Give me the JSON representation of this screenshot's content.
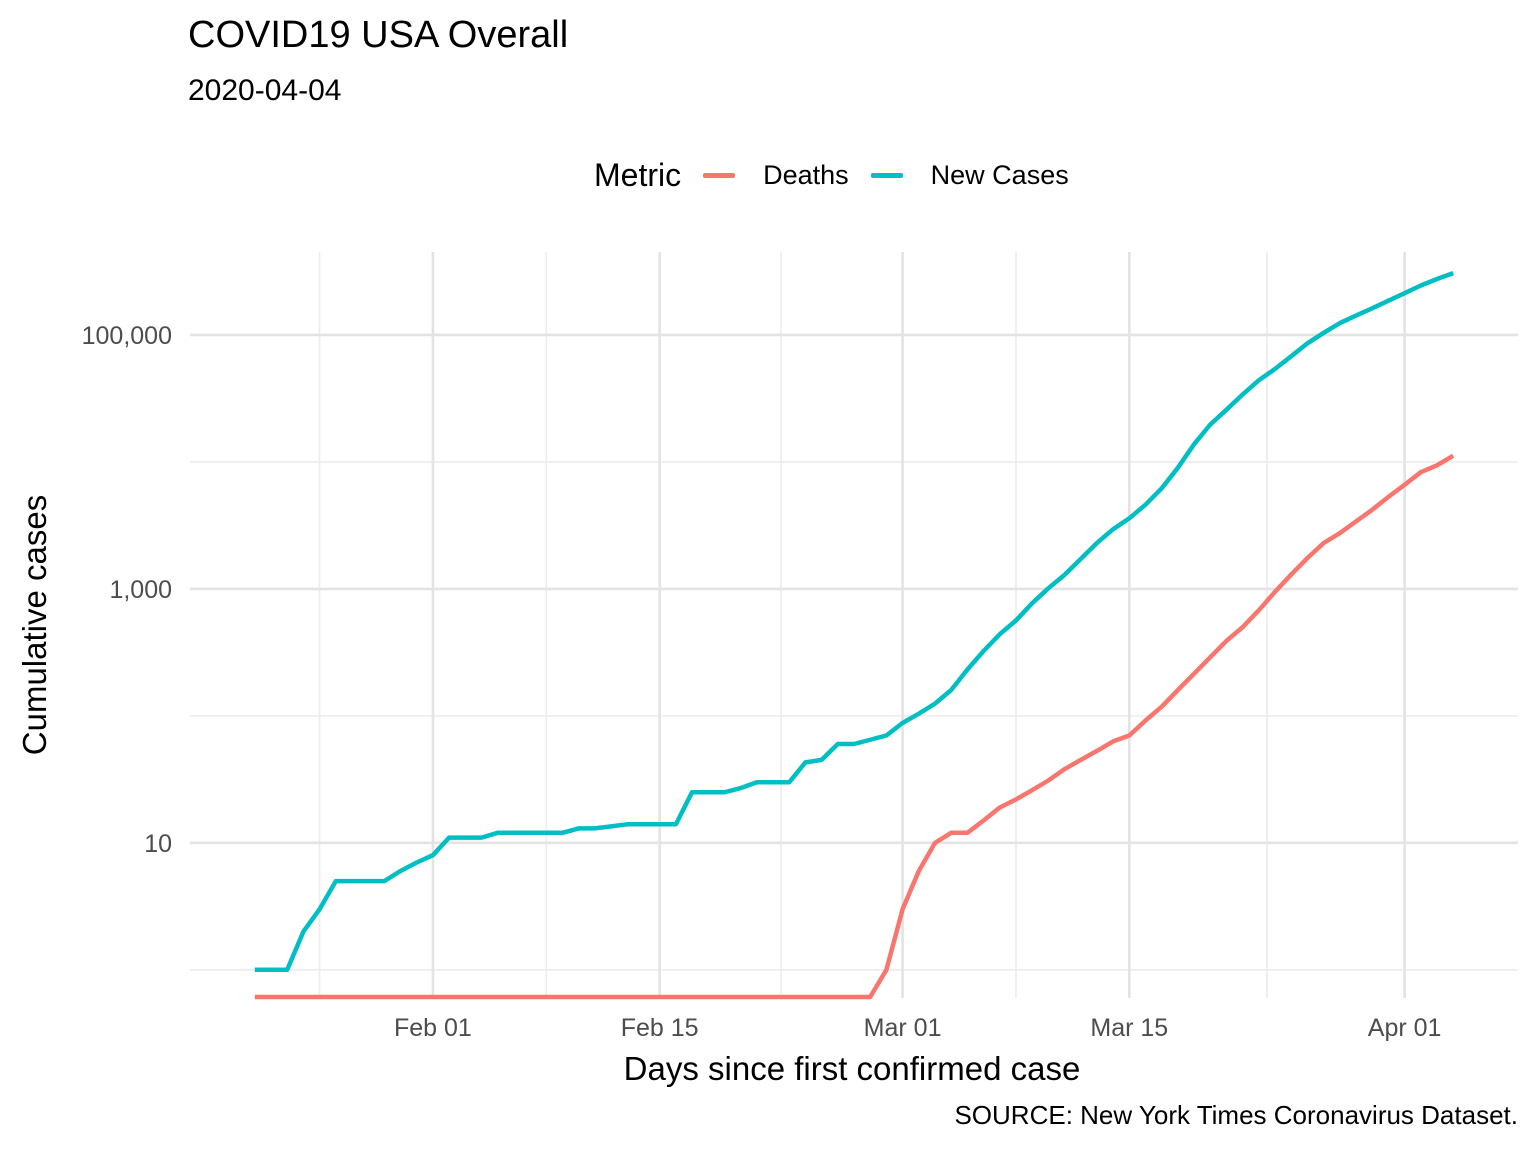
{
  "chart_data": {
    "type": "line",
    "title": "COVID19 USA Overall",
    "subtitle": "2020-04-04",
    "xlabel": "Days since first confirmed case",
    "ylabel": "Cumulative cases",
    "caption": "SOURCE: New York Times Coronavirus Dataset.",
    "y_scale": "log10",
    "ylim": [
      0.6,
      450000
    ],
    "xlim": [
      "2020-01-17",
      "2020-04-08"
    ],
    "x_ticks": [
      {
        "date": "2020-02-01",
        "label": "Feb 01"
      },
      {
        "date": "2020-02-15",
        "label": "Feb 15"
      },
      {
        "date": "2020-03-01",
        "label": "Mar 01"
      },
      {
        "date": "2020-03-15",
        "label": "Mar 15"
      },
      {
        "date": "2020-04-01",
        "label": "Apr 01"
      }
    ],
    "y_ticks": [
      {
        "value": 10,
        "label": "10"
      },
      {
        "value": 1000,
        "label": "1,000"
      },
      {
        "value": 100000,
        "label": "100,000"
      }
    ],
    "grid": true,
    "legend": {
      "title": "Metric",
      "position": "top"
    },
    "series": [
      {
        "name": "Deaths",
        "color": "#F8766D",
        "points": [
          [
            "2020-01-21",
            0
          ],
          [
            "2020-02-28",
            0
          ],
          [
            "2020-02-29",
            1
          ],
          [
            "2020-03-01",
            3
          ],
          [
            "2020-03-02",
            6
          ],
          [
            "2020-03-03",
            10
          ],
          [
            "2020-03-04",
            12
          ],
          [
            "2020-03-05",
            12
          ],
          [
            "2020-03-06",
            15
          ],
          [
            "2020-03-07",
            19
          ],
          [
            "2020-03-08",
            22
          ],
          [
            "2020-03-09",
            26
          ],
          [
            "2020-03-10",
            31
          ],
          [
            "2020-03-11",
            38
          ],
          [
            "2020-03-12",
            45
          ],
          [
            "2020-03-13",
            53
          ],
          [
            "2020-03-14",
            63
          ],
          [
            "2020-03-15",
            70
          ],
          [
            "2020-03-16",
            92
          ],
          [
            "2020-03-17",
            118
          ],
          [
            "2020-03-18",
            160
          ],
          [
            "2020-03-19",
            215
          ],
          [
            "2020-03-20",
            290
          ],
          [
            "2020-03-21",
            390
          ],
          [
            "2020-03-22",
            500
          ],
          [
            "2020-03-23",
            680
          ],
          [
            "2020-03-24",
            950
          ],
          [
            "2020-03-25",
            1300
          ],
          [
            "2020-03-26",
            1750
          ],
          [
            "2020-03-27",
            2300
          ],
          [
            "2020-03-28",
            2750
          ],
          [
            "2020-03-29",
            3400
          ],
          [
            "2020-03-30",
            4200
          ],
          [
            "2020-03-31",
            5300
          ],
          [
            "2020-04-01",
            6600
          ],
          [
            "2020-04-02",
            8300
          ],
          [
            "2020-04-03",
            9400
          ],
          [
            "2020-04-04",
            11200
          ]
        ]
      },
      {
        "name": "New Cases",
        "color": "#00BFC4",
        "points": [
          [
            "2020-01-21",
            1
          ],
          [
            "2020-01-23",
            1
          ],
          [
            "2020-01-24",
            2
          ],
          [
            "2020-01-25",
            3
          ],
          [
            "2020-01-26",
            5
          ],
          [
            "2020-01-29",
            5
          ],
          [
            "2020-01-30",
            6
          ],
          [
            "2020-01-31",
            7
          ],
          [
            "2020-02-01",
            8
          ],
          [
            "2020-02-02",
            11
          ],
          [
            "2020-02-04",
            11
          ],
          [
            "2020-02-05",
            12
          ],
          [
            "2020-02-09",
            12
          ],
          [
            "2020-02-10",
            13
          ],
          [
            "2020-02-11",
            13
          ],
          [
            "2020-02-13",
            14
          ],
          [
            "2020-02-16",
            14
          ],
          [
            "2020-02-17",
            25
          ],
          [
            "2020-02-19",
            25
          ],
          [
            "2020-02-20",
            27
          ],
          [
            "2020-02-21",
            30
          ],
          [
            "2020-02-23",
            30
          ],
          [
            "2020-02-24",
            43
          ],
          [
            "2020-02-25",
            45
          ],
          [
            "2020-02-26",
            60
          ],
          [
            "2020-02-27",
            60
          ],
          [
            "2020-02-29",
            70
          ],
          [
            "2020-03-01",
            88
          ],
          [
            "2020-03-02",
            104
          ],
          [
            "2020-03-03",
            125
          ],
          [
            "2020-03-04",
            160
          ],
          [
            "2020-03-05",
            232
          ],
          [
            "2020-03-06",
            324
          ],
          [
            "2020-03-07",
            440
          ],
          [
            "2020-03-08",
            565
          ],
          [
            "2020-03-09",
            770
          ],
          [
            "2020-03-10",
            1010
          ],
          [
            "2020-03-11",
            1290
          ],
          [
            "2020-03-12",
            1720
          ],
          [
            "2020-03-13",
            2300
          ],
          [
            "2020-03-14",
            2950
          ],
          [
            "2020-03-15",
            3600
          ],
          [
            "2020-03-16",
            4600
          ],
          [
            "2020-03-17",
            6200
          ],
          [
            "2020-03-18",
            9000
          ],
          [
            "2020-03-19",
            13800
          ],
          [
            "2020-03-20",
            19700
          ],
          [
            "2020-03-21",
            25800
          ],
          [
            "2020-03-22",
            34000
          ],
          [
            "2020-03-23",
            44000
          ],
          [
            "2020-03-24",
            54000
          ],
          [
            "2020-03-25",
            68000
          ],
          [
            "2020-03-26",
            86000
          ],
          [
            "2020-03-27",
            104000
          ],
          [
            "2020-03-28",
            124000
          ],
          [
            "2020-03-29",
            142000
          ],
          [
            "2020-03-30",
            162000
          ],
          [
            "2020-03-31",
            186000
          ],
          [
            "2020-04-01",
            213000
          ],
          [
            "2020-04-02",
            245000
          ],
          [
            "2020-04-03",
            276000
          ],
          [
            "2020-04-04",
            307000
          ]
        ]
      }
    ]
  }
}
